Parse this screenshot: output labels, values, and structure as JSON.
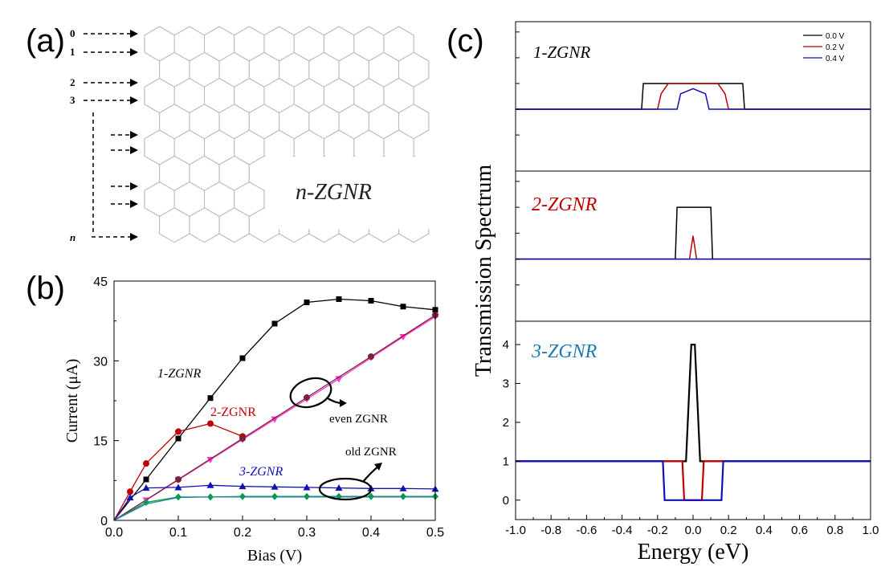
{
  "panel_a": {
    "label": "(a)",
    "ribbon_label": "n-ZGNR",
    "edge_labels": [
      "0",
      "1",
      "2",
      "3",
      "n"
    ]
  },
  "panel_b": {
    "label": "(b)",
    "annotations": {
      "series_1": "1-ZGNR",
      "series_2": "2-ZGNR",
      "series_3": "3-ZGNR",
      "even": "even ZGNR",
      "odd": "old ZGNR"
    }
  },
  "panel_c": {
    "label": "(c)",
    "subpanel_labels": [
      "1-ZGNR",
      "2-ZGNR",
      "3-ZGNR"
    ],
    "legend": [
      "0.0 V",
      "0.2 V",
      "0.4 V"
    ]
  },
  "colors": {
    "black": "#000000",
    "red": "#c00000",
    "blue": "#1010b0",
    "magenta": "#ff33cc",
    "maroon": "#7a2040",
    "green": "#00a040",
    "teal": "#2a7fa8",
    "lattice": "#b8b8b8"
  },
  "chart_data": [
    {
      "type": "line",
      "panel": "b",
      "xlabel": "Bias (V)",
      "ylabel": "Current (μA)",
      "xlim": [
        0,
        0.5
      ],
      "ylim": [
        0,
        45
      ],
      "xticks": [
        "0.0",
        "0.1",
        "0.2",
        "0.3",
        "0.4",
        "0.5"
      ],
      "yticks": [
        "0",
        "15",
        "30",
        "45"
      ],
      "series": [
        {
          "color": "black",
          "marker": "square",
          "x": [
            0,
            0.05,
            0.1,
            0.15,
            0.2,
            0.25,
            0.3,
            0.35,
            0.4,
            0.45,
            0.5
          ],
          "y": [
            0,
            7.7,
            15.4,
            23.0,
            30.5,
            37.0,
            41.0,
            41.6,
            41.3,
            40.2,
            39.6
          ]
        },
        {
          "color": "red",
          "marker": "circle",
          "x": [
            0,
            0.025,
            0.05,
            0.1,
            0.15,
            0.2
          ],
          "y": [
            0,
            5.4,
            10.7,
            16.7,
            18.2,
            15.8
          ]
        },
        {
          "color": "magenta",
          "marker": "triangle-down",
          "x": [
            0,
            0.05,
            0.1,
            0.15,
            0.2,
            0.25,
            0.3,
            0.35,
            0.4,
            0.45,
            0.5
          ],
          "y": [
            0,
            3.8,
            7.6,
            11.4,
            15.2,
            19.0,
            22.8,
            26.6,
            30.6,
            34.5,
            38.3
          ]
        },
        {
          "color": "maroon",
          "marker": "circle",
          "x": [
            0,
            0.1,
            0.2,
            0.3,
            0.4,
            0.5
          ],
          "y": [
            0,
            7.7,
            15.4,
            23.1,
            30.8,
            38.6
          ]
        },
        {
          "color": "blue",
          "marker": "triangle-up",
          "x": [
            0,
            0.025,
            0.05,
            0.1,
            0.15,
            0.2,
            0.25,
            0.3,
            0.35,
            0.4,
            0.45,
            0.5
          ],
          "y": [
            0,
            4.3,
            6.1,
            6.2,
            6.6,
            6.4,
            6.3,
            6.2,
            6.1,
            6.0,
            6.0,
            5.9
          ]
        },
        {
          "color": "green",
          "marker": "diamond",
          "x": [
            0,
            0.05,
            0.1,
            0.15,
            0.2,
            0.25,
            0.3,
            0.35,
            0.4,
            0.45,
            0.5
          ],
          "y": [
            0,
            3.4,
            4.4,
            4.4,
            4.5,
            4.5,
            4.5,
            4.5,
            4.5,
            4.5,
            4.5
          ]
        },
        {
          "color": "teal",
          "marker": "none",
          "x": [
            0,
            0.05,
            0.1,
            0.15,
            0.2,
            0.25,
            0.3,
            0.35,
            0.4,
            0.45,
            0.5
          ],
          "y": [
            0,
            3.1,
            4.3,
            4.4,
            4.4,
            4.4,
            4.4,
            4.4,
            4.4,
            4.4,
            4.4
          ]
        }
      ]
    },
    {
      "type": "line",
      "panel": "c",
      "xlabel": "Energy (eV)",
      "ylabel": "Transmission Spectrum",
      "xlim": [
        -1.0,
        1.0
      ],
      "xticks": [
        "-1.0",
        "-0.8",
        "-0.6",
        "-0.4",
        "-0.2",
        "0.0",
        "0.2",
        "0.4",
        "0.6",
        "0.8",
        "1.0"
      ],
      "subplots": [
        {
          "name": "1-ZGNR",
          "ylim": [
            -1.4,
            4.4
          ],
          "series": [
            {
              "color": "black",
              "x": [
                -1.0,
                -0.29,
                -0.28,
                0.28,
                0.29,
                1.0
              ],
              "y": [
                1,
                1,
                2,
                2,
                1,
                1
              ]
            },
            {
              "color": "red",
              "x": [
                -1.0,
                -0.2,
                -0.18,
                -0.14,
                0.14,
                0.18,
                0.2,
                1.0
              ],
              "y": [
                1,
                1,
                1.6,
                2,
                2,
                1.6,
                1,
                1
              ]
            },
            {
              "color": "blue",
              "x": [
                -1.0,
                -0.09,
                -0.07,
                0.0,
                0.07,
                0.09,
                1.0
              ],
              "y": [
                1,
                1,
                1.6,
                1.8,
                1.6,
                1,
                1
              ]
            }
          ]
        },
        {
          "name": "2-ZGNR",
          "ylim": [
            -1.4,
            4.4
          ],
          "series": [
            {
              "color": "black",
              "x": [
                -1.0,
                -0.1,
                -0.09,
                0.1,
                0.11,
                1.0
              ],
              "y": [
                1,
                1,
                3,
                3,
                1,
                1
              ]
            },
            {
              "color": "red",
              "x": [
                -1.0,
                -0.02,
                0.0,
                0.02,
                1.0
              ],
              "y": [
                1,
                1,
                1.9,
                1,
                1
              ]
            },
            {
              "color": "blue",
              "x": [
                -1.0,
                1.0
              ],
              "y": [
                1,
                1
              ]
            }
          ]
        },
        {
          "name": "3-ZGNR",
          "ylim": [
            -0.5,
            4.6
          ],
          "yticks": [
            "0",
            "1",
            "2",
            "3",
            "4"
          ],
          "series": [
            {
              "color": "black",
              "x": [
                -1.0,
                -0.04,
                -0.03,
                -0.01,
                0.01,
                0.03,
                0.04,
                1.0
              ],
              "y": [
                1,
                1,
                2,
                4,
                4,
                2,
                1,
                1
              ]
            },
            {
              "color": "red",
              "x": [
                -1.0,
                -0.16,
                -0.15,
                -0.06,
                -0.05,
                0.05,
                0.06,
                0.15,
                0.16,
                1.0
              ],
              "y": [
                1,
                1,
                1,
                1,
                0,
                0,
                1,
                1,
                1,
                1
              ]
            },
            {
              "color": "blue",
              "x": [
                -1.0,
                -0.17,
                -0.16,
                0.16,
                0.17,
                1.0
              ],
              "y": [
                1,
                1,
                0,
                0,
                1,
                1
              ]
            }
          ]
        }
      ]
    }
  ]
}
